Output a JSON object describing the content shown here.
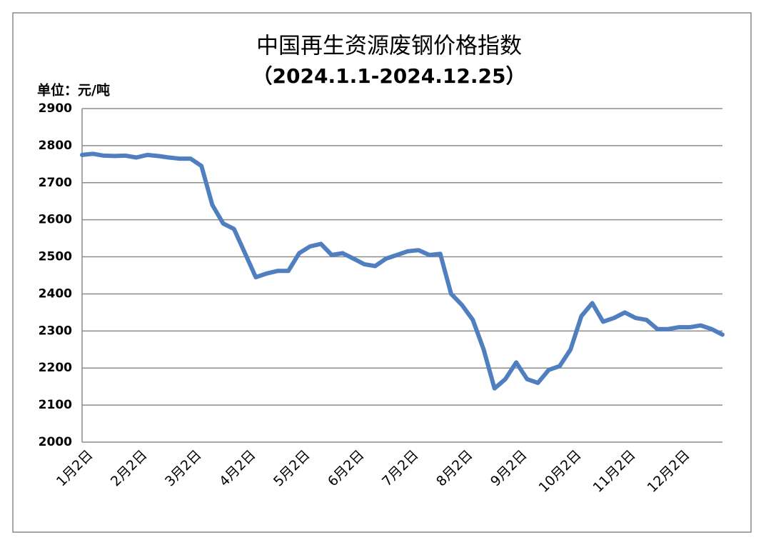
{
  "chart_data": {
    "type": "line",
    "title": "中国再生资源废钢价格指数",
    "subtitle": "（2024.1.1-2024.12.25）",
    "y_label": "单位：元/吨",
    "categories": [
      "1月2日",
      null,
      null,
      null,
      null,
      "2月2日",
      null,
      null,
      null,
      null,
      "3月2日",
      null,
      null,
      null,
      null,
      "4月2日",
      null,
      null,
      null,
      null,
      "5月2日",
      null,
      null,
      null,
      null,
      "6月2日",
      null,
      null,
      null,
      null,
      "7月2日",
      null,
      null,
      null,
      null,
      "8月2日",
      null,
      null,
      null,
      null,
      "9月2日",
      null,
      null,
      null,
      null,
      "10月2日",
      null,
      null,
      null,
      null,
      "11月2日",
      null,
      null,
      null,
      null,
      "12月2日",
      null,
      null,
      null,
      null
    ],
    "series": [
      {
        "name": "中国再生资源废钢价格指数",
        "color": "#4f7fbf",
        "values": [
          2775,
          2778,
          2773,
          2772,
          2773,
          2768,
          2775,
          2772,
          2768,
          2765,
          2765,
          2745,
          2640,
          2590,
          2575,
          2510,
          2445,
          2455,
          2462,
          2462,
          2510,
          2528,
          2535,
          2505,
          2510,
          2495,
          2480,
          2475,
          2495,
          2505,
          2515,
          2518,
          2505,
          2508,
          2400,
          2370,
          2330,
          2250,
          2145,
          2170,
          2215,
          2170,
          2160,
          2195,
          2205,
          2250,
          2340,
          2375,
          2325,
          2335,
          2350,
          2335,
          2330,
          2305,
          2305,
          2310,
          2310,
          2315,
          2305,
          2290
        ]
      }
    ],
    "ylim": [
      2000,
      2900
    ],
    "yticks": [
      2000,
      2100,
      2200,
      2300,
      2400,
      2500,
      2600,
      2700,
      2800,
      2900
    ],
    "grid": true
  }
}
